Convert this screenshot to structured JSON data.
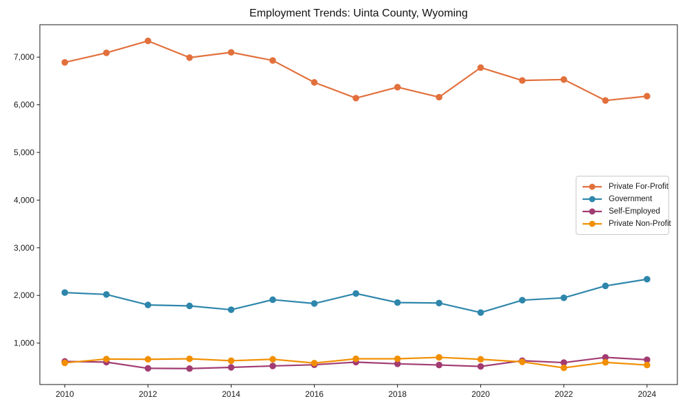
{
  "figure": {
    "background": "#ffffff",
    "spine_color": "#191919",
    "text_color": "#191919"
  },
  "chart_data": {
    "type": "line",
    "title": "Employment Trends: Uinta County, Wyoming",
    "xlabel": "",
    "ylabel": "",
    "grid": false,
    "legend_position": "center-right",
    "xlim": [
      2009.4,
      2024.73
    ],
    "ylim": [
      130,
      7680
    ],
    "x_ticks": [
      2010,
      2012,
      2014,
      2016,
      2018,
      2020,
      2022,
      2024
    ],
    "y_ticks": [
      1000,
      2000,
      3000,
      4000,
      5000,
      6000,
      7000
    ],
    "y_tick_labels": [
      "1,000",
      "2,000",
      "3,000",
      "4,000",
      "5,000",
      "6,000",
      "7,000"
    ],
    "x": [
      2010,
      2011,
      2012,
      2013,
      2014,
      2015,
      2016,
      2017,
      2018,
      2019,
      2020,
      2021,
      2022,
      2023,
      2024
    ],
    "series": [
      {
        "name": "Private For-Profit",
        "color": "#E2703C",
        "values": [
          6890,
          7090,
          7340,
          6990,
          7100,
          6930,
          6470,
          6140,
          6370,
          6160,
          6780,
          6510,
          6530,
          6090,
          6180
        ]
      },
      {
        "name": "Government",
        "color": "#2E86AB",
        "values": [
          2060,
          2020,
          1800,
          1780,
          1700,
          1910,
          1830,
          2040,
          1850,
          1840,
          1640,
          1900,
          1950,
          2200,
          2340
        ]
      },
      {
        "name": "Self-Employed",
        "color": "#A23B72",
        "values": [
          615,
          600,
          470,
          465,
          490,
          520,
          545,
          600,
          565,
          540,
          510,
          630,
          590,
          700,
          650
        ]
      },
      {
        "name": "Private Non-Profit",
        "color": "#F18F01",
        "values": [
          585,
          665,
          660,
          670,
          630,
          660,
          580,
          670,
          670,
          700,
          660,
          605,
          480,
          595,
          540
        ]
      }
    ]
  }
}
